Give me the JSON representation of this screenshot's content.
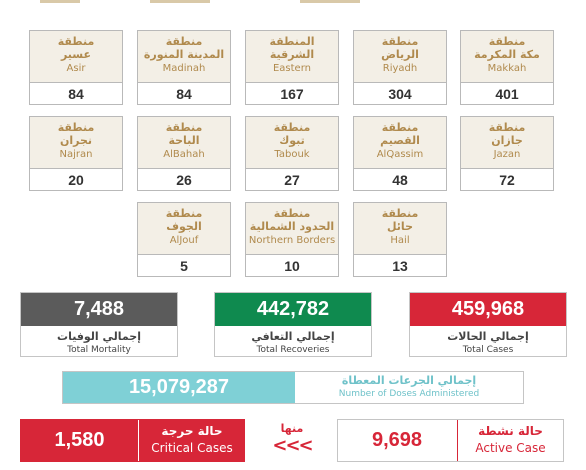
{
  "regions": [
    {
      "ar1": "منطقة",
      "ar2": "مكة المكرمة",
      "en": "Makkah",
      "count": "401"
    },
    {
      "ar1": "منطقة",
      "ar2": "الرياض",
      "en": "Riyadh",
      "count": "304"
    },
    {
      "ar1": "المنطقة",
      "ar2": "الشرقية",
      "en": "Eastern",
      "count": "167"
    },
    {
      "ar1": "منطقة",
      "ar2": "المدينة المنورة",
      "en": "Madinah",
      "count": "84"
    },
    {
      "ar1": "منطقة",
      "ar2": "عسير",
      "en": "Asir",
      "count": "84"
    },
    {
      "ar1": "منطقة",
      "ar2": "جازان",
      "en": "Jazan",
      "count": "72"
    },
    {
      "ar1": "منطقة",
      "ar2": "القصيم",
      "en": "AlQassim",
      "count": "48"
    },
    {
      "ar1": "منطقة",
      "ar2": "تبوك",
      "en": "Tabouk",
      "count": "27"
    },
    {
      "ar1": "منطقة",
      "ar2": "الباحة",
      "en": "AlBahah",
      "count": "26"
    },
    {
      "ar1": "منطقة",
      "ar2": "نجران",
      "en": "Najran",
      "count": "20"
    },
    {
      "ar1": "منطقة",
      "ar2": "حائل",
      "en": "Hail",
      "count": "13"
    },
    {
      "ar1": "منطقة",
      "ar2": "الحدود الشمالية",
      "en": "Northern Borders",
      "count": "10"
    },
    {
      "ar1": "منطقة",
      "ar2": "الجوف",
      "en": "AlJouf",
      "count": "5"
    }
  ],
  "totals": {
    "cases": {
      "value": "459,968",
      "ar": "إجمالي الحالات",
      "en": "Total Cases",
      "color": "#d72638"
    },
    "recoveries": {
      "value": "442,782",
      "ar": "إجمالي التعافي",
      "en": "Total Recoveries",
      "color": "#0f8a4f"
    },
    "mortality": {
      "value": "7,488",
      "ar": "إجمالي الوفيات",
      "en": "Total Mortality",
      "color": "#5b5b5b"
    }
  },
  "doses": {
    "value": "15,079,287",
    "ar": "إجمالي الجرعات المعطاة",
    "en": "Number of Doses Administered"
  },
  "active": {
    "value": "9,698",
    "ar": "حالة نشطة",
    "en": "Active Case"
  },
  "critical": {
    "value": "1,580",
    "ar": "حالة حرجة",
    "en": "Critical Cases"
  },
  "minha": {
    "ar": "منها",
    "arrows": "<<<"
  }
}
